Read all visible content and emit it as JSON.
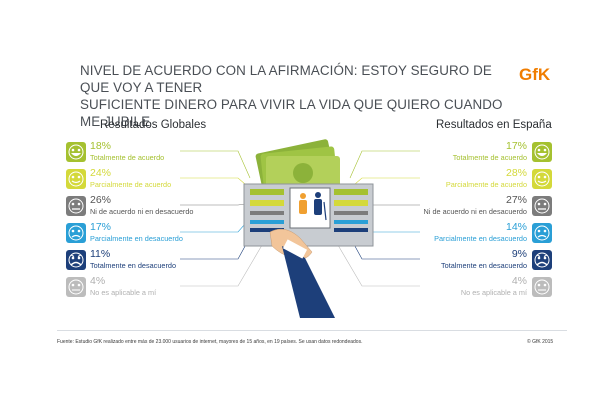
{
  "title_line1": "NIVEL DE ACUERDO CON LA AFIRMACIÓN: ESTOY SEGURO DE QUE VOY A TENER",
  "title_line2": "SUFICIENTE DINERO PARA VIVIR LA VIDA QUE QUIERO CUANDO ME JUBILE",
  "logo_text": "GfK",
  "left_heading": "Resultados Globales",
  "right_heading": "Resultados en España",
  "rows": [
    {
      "label": "Totalmente de acuerdo",
      "global": "18%",
      "spain": "17%",
      "color": "#a5c130",
      "face": "very-happy"
    },
    {
      "label": "Parcialmente de acuerdo",
      "global": "24%",
      "spain": "28%",
      "color": "#d4d93a",
      "face": "happy"
    },
    {
      "label": "Ni de acuerdo ni en desacuerdo",
      "global": "26%",
      "spain": "27%",
      "color": "#7c7c7c",
      "face": "neutral"
    },
    {
      "label": "Parcialmente en desacuerdo",
      "global": "17%",
      "spain": "14%",
      "color": "#2a9fd6",
      "face": "sad"
    },
    {
      "label": "Totalmente en desacuerdo",
      "global": "11%",
      "spain": "9%",
      "color": "#1d3f7a",
      "face": "very-sad"
    },
    {
      "label": "No es aplicable a mí",
      "global": "4%",
      "spain": "4%",
      "color": "#bcbcbc",
      "face": "blank"
    }
  ],
  "footer": "Fuente: Estudio GfK realizado entre más de 23.000 usuarios de internet, mayores de 15 años, en 19 países. Se usan datos redondeados.",
  "copyright": "© GfK 2015"
}
